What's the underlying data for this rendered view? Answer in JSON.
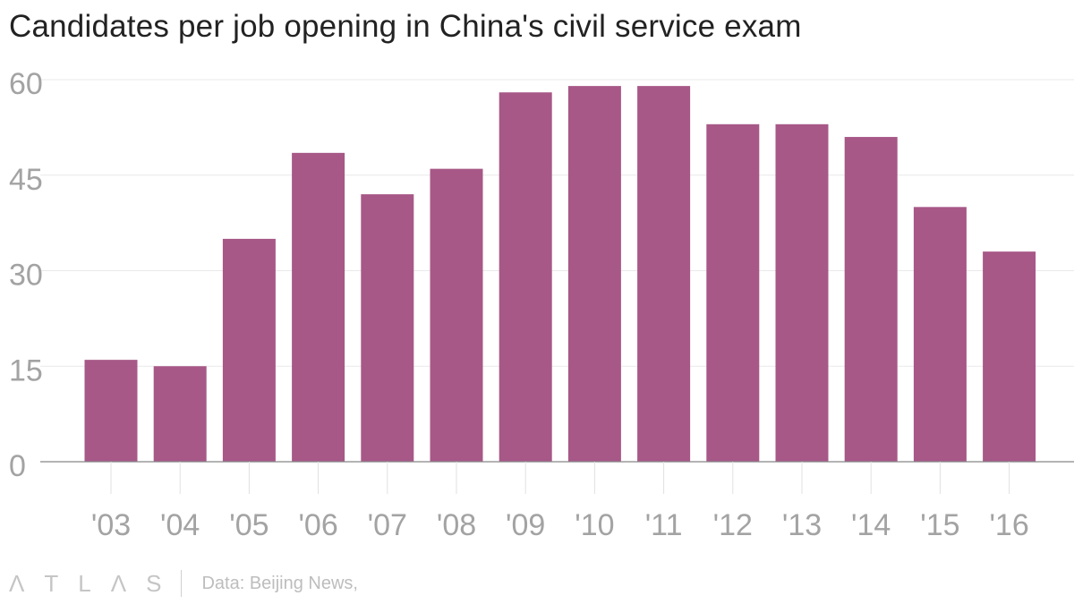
{
  "header": {
    "title": "Candidates per job opening in China's civil service exam"
  },
  "footer": {
    "logo_letters": [
      "Λ",
      "T",
      "L",
      "Λ",
      "S"
    ],
    "logo_text": "ATLAS",
    "source": "Data: Beijing News,"
  },
  "colors": {
    "bar": "#a75887",
    "grid": "#e9e9e9",
    "axis_line": "#888888",
    "tick_label": "#a3a3a3",
    "title": "#222222"
  },
  "chart_data": {
    "type": "bar",
    "title": "Candidates per job opening in China's civil service exam",
    "xlabel": "",
    "ylabel": "",
    "categories": [
      "'03",
      "'04",
      "'05",
      "'06",
      "'07",
      "'08",
      "'09",
      "'10",
      "'11",
      "'12",
      "'13",
      "'14",
      "'15",
      "'16"
    ],
    "values": [
      16,
      15,
      35,
      48.5,
      42,
      46,
      58,
      59,
      59,
      53,
      53,
      51,
      40,
      33
    ],
    "ylim": [
      0,
      60
    ],
    "yticks": [
      0,
      15,
      30,
      45,
      60
    ],
    "grid": true,
    "legend": "none"
  }
}
